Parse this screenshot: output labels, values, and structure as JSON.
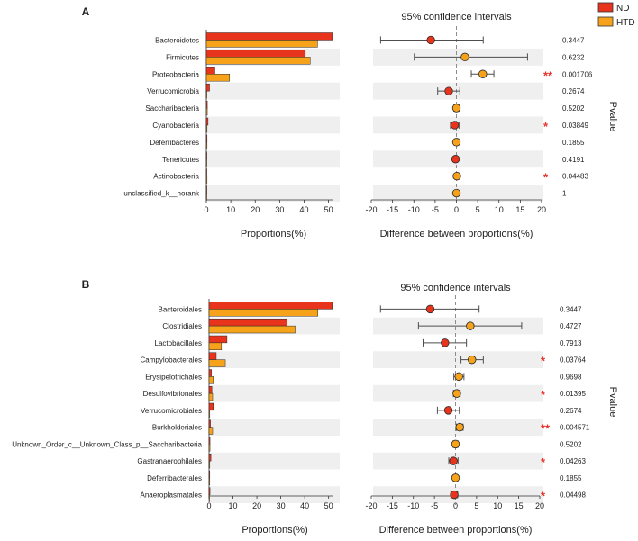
{
  "legend": {
    "items": [
      {
        "label": "ND",
        "color": "#e8341c"
      },
      {
        "label": "HTD",
        "color": "#f6a31b"
      }
    ]
  },
  "colors": {
    "nd": "#e8341c",
    "htd": "#f6a31b",
    "stripe": "#efefef",
    "star": "#e8342c",
    "errorbar": "#4d4d4d",
    "zeroline": "#8c8c8c"
  },
  "chart_data": [
    {
      "type": "extended-error-bar",
      "panel_label": "A",
      "title": "95% confidence intervals",
      "xlabel_left": "Proportions(%)",
      "xlabel_right": "Difference between proportions(%)",
      "pvalue_label": "Pvalue",
      "left_xlim": [
        0,
        52
      ],
      "left_ticks": [
        "0",
        "10",
        "20",
        "30",
        "40",
        "50"
      ],
      "right_xlim": [
        -20,
        20
      ],
      "right_ticks": [
        "-20",
        "-15",
        "-10",
        "-5",
        "0",
        "5",
        "10",
        "15",
        "20"
      ],
      "series": [
        {
          "name": "ND"
        },
        {
          "name": "HTD"
        }
      ],
      "rows": [
        {
          "category": "Bacteroidetes",
          "nd": 51.5,
          "htd": 45.5,
          "diff": -6.0,
          "ci": [
            -17.8,
            6.3
          ],
          "pvalue": "0.3447",
          "sig": ""
        },
        {
          "category": "Firmicutes",
          "nd": 40.5,
          "htd": 42.5,
          "diff": 2.0,
          "ci": [
            -9.9,
            16.7
          ],
          "pvalue": "0.6232",
          "sig": ""
        },
        {
          "category": "Proteobacteria",
          "nd": 3.5,
          "htd": 9.5,
          "diff": 6.2,
          "ci": [
            3.5,
            8.8
          ],
          "pvalue": "0.001706",
          "sig": "**"
        },
        {
          "category": "Verrucomicrobia",
          "nd": 1.3,
          "htd": 0.2,
          "diff": -1.8,
          "ci": [
            -4.4,
            0.8
          ],
          "pvalue": "0.2674",
          "sig": ""
        },
        {
          "category": "Saccharibacteria",
          "nd": 0.4,
          "htd": 0.4,
          "diff": 0.0,
          "ci": [
            -0.6,
            0.6
          ],
          "pvalue": "0.5202",
          "sig": ""
        },
        {
          "category": "Cyanobacteria",
          "nd": 0.7,
          "htd": 0.3,
          "diff": -0.4,
          "ci": [
            -1.4,
            0.6
          ],
          "pvalue": "0.03849",
          "sig": "*"
        },
        {
          "category": "Deferribacteres",
          "nd": 0.3,
          "htd": 0.3,
          "diff": 0.0,
          "ci": [
            -0.5,
            0.5
          ],
          "pvalue": "0.1855",
          "sig": ""
        },
        {
          "category": "Tenericutes",
          "nd": 0.2,
          "htd": 0.2,
          "diff": -0.2,
          "ci": [
            -0.6,
            0.2
          ],
          "pvalue": "0.4191",
          "sig": ""
        },
        {
          "category": "Actinobacteria",
          "nd": 0.2,
          "htd": 0.3,
          "diff": 0.1,
          "ci": [
            -0.3,
            0.5
          ],
          "pvalue": "0.04483",
          "sig": "*"
        },
        {
          "category": "unclassified_k__norank",
          "nd": 0.0,
          "htd": 0.0,
          "diff": 0.0,
          "ci": [
            0.0,
            0.0
          ],
          "pvalue": "1",
          "sig": ""
        }
      ]
    },
    {
      "type": "extended-error-bar",
      "panel_label": "B",
      "title": "95% confidence intervals",
      "xlabel_left": "Proportions(%)",
      "xlabel_right": "Difference between proportions(%)",
      "pvalue_label": "Pvalue",
      "left_xlim": [
        0,
        52
      ],
      "left_ticks": [
        "0",
        "10",
        "20",
        "30",
        "40",
        "50"
      ],
      "right_xlim": [
        -20,
        20
      ],
      "right_ticks": [
        "-20",
        "-15",
        "-10",
        "-5",
        "0",
        "5",
        "10",
        "15",
        "20"
      ],
      "series": [
        {
          "name": "ND"
        },
        {
          "name": "HTD"
        }
      ],
      "rows": [
        {
          "category": "Bacteroidales",
          "nd": 51.5,
          "htd": 45.5,
          "diff": -6.0,
          "ci": [
            -17.8,
            5.6
          ],
          "pvalue": "0.3447",
          "sig": ""
        },
        {
          "category": "Clostridiales",
          "nd": 32.5,
          "htd": 36.0,
          "diff": 3.5,
          "ci": [
            -8.8,
            15.7
          ],
          "pvalue": "0.4727",
          "sig": ""
        },
        {
          "category": "Lactobacillales",
          "nd": 7.5,
          "htd": 5.2,
          "diff": -2.5,
          "ci": [
            -7.7,
            2.6
          ],
          "pvalue": "0.7913",
          "sig": ""
        },
        {
          "category": "Campylobacterales",
          "nd": 3.0,
          "htd": 6.8,
          "diff": 3.9,
          "ci": [
            1.3,
            6.6
          ],
          "pvalue": "0.03764",
          "sig": "*"
        },
        {
          "category": "Erysipelotrichales",
          "nd": 1.0,
          "htd": 1.8,
          "diff": 0.8,
          "ci": [
            -0.4,
            2.0
          ],
          "pvalue": "0.9698",
          "sig": ""
        },
        {
          "category": "Desulfovibrionales",
          "nd": 1.2,
          "htd": 1.5,
          "diff": 0.3,
          "ci": [
            -0.5,
            1.1
          ],
          "pvalue": "0.01395",
          "sig": "*"
        },
        {
          "category": "Verrucomicrobiales",
          "nd": 1.8,
          "htd": 0.3,
          "diff": -1.7,
          "ci": [
            -4.3,
            0.9
          ],
          "pvalue": "0.2674",
          "sig": ""
        },
        {
          "category": "Burkholderiales",
          "nd": 0.6,
          "htd": 1.5,
          "diff": 1.0,
          "ci": [
            0.2,
            1.8
          ],
          "pvalue": "0.004571",
          "sig": "**"
        },
        {
          "category": "Unknown_Order_c__Unknown_Class_p__Saccharibacteria",
          "nd": 0.4,
          "htd": 0.4,
          "diff": 0.0,
          "ci": [
            -0.6,
            0.6
          ],
          "pvalue": "0.5202",
          "sig": ""
        },
        {
          "category": "Gastranaerophilales",
          "nd": 0.8,
          "htd": 0.3,
          "diff": -0.5,
          "ci": [
            -1.6,
            0.6
          ],
          "pvalue": "0.04263",
          "sig": "*"
        },
        {
          "category": "Deferribacterales",
          "nd": 0.3,
          "htd": 0.3,
          "diff": 0.0,
          "ci": [
            -0.5,
            0.5
          ],
          "pvalue": "0.1855",
          "sig": ""
        },
        {
          "category": "Anaeroplasmatales",
          "nd": 0.4,
          "htd": 0.1,
          "diff": -0.3,
          "ci": [
            -1.1,
            0.5
          ],
          "pvalue": "0.04498",
          "sig": "*"
        }
      ]
    }
  ]
}
